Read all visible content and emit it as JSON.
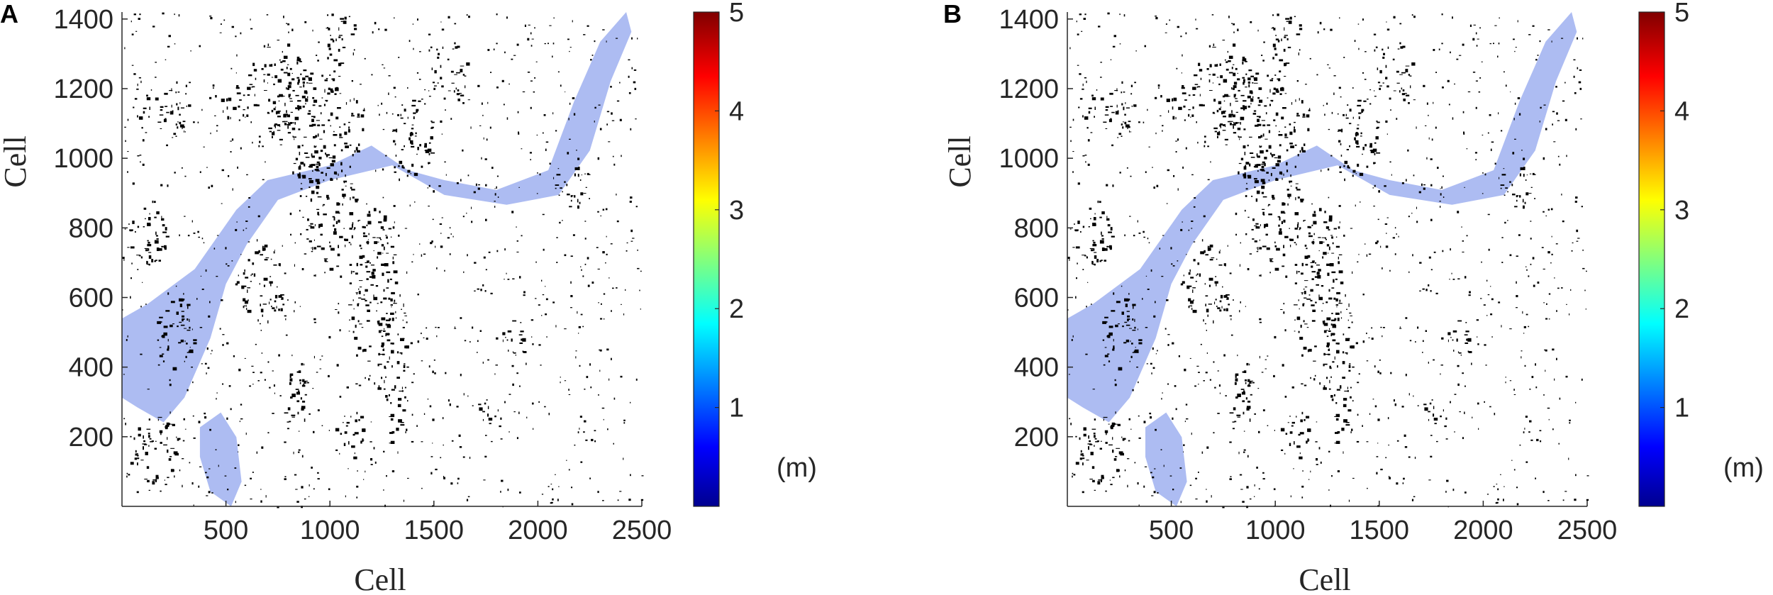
{
  "chart_data": [
    {
      "type": "heatmap",
      "panel_label": "A",
      "xlabel": "Cell",
      "ylabel": "Cell",
      "x_ticks": [
        500,
        1000,
        1500,
        2000,
        2500
      ],
      "y_ticks": [
        200,
        400,
        600,
        800,
        1000,
        1200,
        1400
      ],
      "xlim": [
        0,
        2500
      ],
      "ylim": [
        0,
        1420
      ],
      "colorbar": {
        "ticks": [
          1,
          2,
          3,
          4,
          5
        ],
        "range": [
          0,
          5
        ],
        "unit": "(m)",
        "colormap": "jet"
      },
      "grid": false,
      "colors": {
        "buildings": "#000000",
        "flood": "#9fb0f0",
        "background": "#ffffff"
      }
    },
    {
      "type": "heatmap",
      "panel_label": "B",
      "xlabel": "Cell",
      "ylabel": "Cell",
      "x_ticks": [
        500,
        1000,
        1500,
        2000,
        2500
      ],
      "y_ticks": [
        200,
        400,
        600,
        800,
        1000,
        1200,
        1400
      ],
      "xlim": [
        0,
        2500
      ],
      "ylim": [
        0,
        1420
      ],
      "colorbar": {
        "ticks": [
          1,
          2,
          3,
          4,
          5
        ],
        "range": [
          0,
          5
        ],
        "unit": "(m)",
        "colormap": "jet"
      },
      "grid": false,
      "colors": {
        "buildings": "#000000",
        "flood": "#9fb0f0",
        "background": "#ffffff"
      }
    }
  ]
}
